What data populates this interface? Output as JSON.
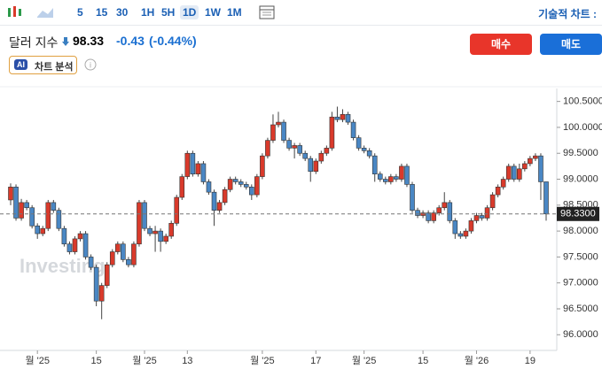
{
  "toolbar": {
    "intervals": [
      "5",
      "15",
      "30",
      "1H",
      "5H",
      "1D",
      "1W",
      "1M"
    ],
    "active": "1D",
    "right_label": "기술적 차트 :"
  },
  "header": {
    "name": "달러 지수",
    "price": "98.33",
    "change": "-0.43",
    "change_pct": "(-0.44%)",
    "buy": "매수",
    "sell": "매도",
    "ai_badge": "AI",
    "ai_label": "차트 분석",
    "watermark": "Investing"
  },
  "chart_data": {
    "type": "candlestick",
    "up_color": "#d93a2b",
    "down_color": "#4a87c4",
    "categories": [
      null,
      null,
      null,
      null,
      null,
      "월 '25",
      null,
      null,
      null,
      null,
      null,
      null,
      null,
      null,
      null,
      null,
      "15",
      null,
      null,
      null,
      null,
      null,
      null,
      null,
      null,
      "월 '25",
      null,
      null,
      null,
      null,
      null,
      null,
      null,
      "13",
      null,
      null,
      null,
      null,
      null,
      null,
      null,
      null,
      null,
      null,
      null,
      null,
      null,
      "월 '25",
      null,
      null,
      null,
      null,
      null,
      null,
      null,
      null,
      null,
      "17",
      null,
      null,
      null,
      null,
      null,
      null,
      null,
      null,
      "월 '25",
      null,
      null,
      null,
      null,
      null,
      null,
      null,
      null,
      null,
      null,
      "15",
      null,
      null,
      null,
      null,
      null,
      null,
      null,
      null,
      null,
      "월 '26",
      null,
      null,
      null,
      null,
      null,
      null,
      null,
      null,
      null,
      "19",
      null,
      null,
      null
    ],
    "open": [
      98.6,
      98.85,
      98.25,
      98.55,
      98.45,
      98.1,
      97.95,
      98.05,
      98.55,
      98.4,
      98.05,
      97.75,
      97.6,
      97.85,
      97.95,
      97.5,
      97.3,
      96.65,
      96.95,
      97.35,
      97.6,
      97.75,
      97.45,
      97.35,
      97.75,
      98.55,
      98.05,
      97.95,
      98.0,
      97.8,
      97.9,
      98.15,
      98.65,
      99.05,
      99.5,
      99.1,
      99.3,
      98.95,
      98.75,
      98.4,
      98.55,
      98.8,
      99.0,
      98.95,
      98.9,
      98.85,
      98.7,
      99.05,
      99.45,
      99.75,
      100.05,
      100.1,
      99.75,
      99.6,
      99.65,
      99.5,
      99.4,
      99.15,
      99.35,
      99.5,
      99.6,
      100.2,
      100.15,
      100.25,
      100.1,
      99.8,
      99.6,
      99.55,
      99.45,
      99.1,
      99.0,
      98.95,
      99.05,
      99.0,
      99.25,
      98.9,
      98.4,
      98.3,
      98.35,
      98.2,
      98.35,
      98.45,
      98.55,
      98.2,
      97.95,
      97.9,
      98.0,
      98.2,
      98.3,
      98.25,
      98.45,
      98.7,
      98.85,
      99.0,
      99.25,
      99.0,
      99.2,
      99.3,
      99.4,
      99.45,
      98.95
    ],
    "high": [
      98.92,
      98.9,
      98.62,
      98.6,
      98.5,
      98.15,
      98.1,
      98.6,
      98.6,
      98.45,
      98.1,
      97.8,
      97.9,
      98.0,
      98.0,
      97.55,
      97.35,
      97.0,
      97.4,
      97.65,
      97.8,
      97.8,
      97.5,
      97.8,
      98.6,
      98.6,
      98.1,
      98.1,
      98.05,
      97.95,
      98.2,
      98.7,
      99.1,
      99.55,
      99.55,
      99.35,
      99.35,
      99.0,
      98.8,
      98.6,
      98.85,
      99.05,
      99.05,
      99.0,
      98.95,
      98.9,
      99.1,
      99.5,
      99.8,
      100.25,
      100.3,
      100.15,
      99.8,
      99.7,
      99.7,
      99.55,
      99.45,
      99.4,
      99.55,
      99.65,
      100.3,
      100.4,
      100.35,
      100.3,
      100.15,
      99.85,
      99.65,
      99.6,
      99.5,
      99.15,
      99.05,
      99.1,
      99.1,
      99.3,
      99.3,
      98.95,
      98.45,
      98.4,
      98.4,
      98.4,
      98.5,
      98.75,
      98.6,
      98.25,
      98.0,
      98.05,
      98.25,
      98.35,
      98.35,
      98.5,
      98.75,
      98.9,
      99.05,
      99.3,
      99.3,
      99.3,
      99.35,
      99.45,
      99.5,
      99.5,
      98.95
    ],
    "low": [
      98.5,
      98.2,
      98.2,
      98.4,
      98.05,
      97.85,
      97.9,
      98.0,
      98.35,
      98.0,
      97.7,
      97.55,
      97.55,
      97.8,
      97.45,
      97.25,
      96.55,
      96.3,
      96.9,
      97.3,
      97.55,
      97.4,
      97.3,
      97.3,
      97.7,
      98.0,
      97.9,
      97.6,
      97.6,
      97.75,
      97.85,
      98.1,
      98.6,
      99.0,
      99.05,
      99.05,
      98.9,
      98.7,
      98.1,
      98.35,
      98.5,
      98.75,
      98.9,
      98.85,
      98.8,
      98.6,
      98.65,
      99.0,
      99.4,
      99.7,
      100.0,
      99.7,
      99.55,
      99.4,
      99.45,
      99.35,
      98.95,
      99.1,
      99.3,
      99.45,
      99.55,
      100.1,
      100.1,
      100.05,
      99.75,
      99.55,
      99.5,
      99.4,
      98.95,
      98.95,
      98.9,
      98.9,
      98.95,
      98.95,
      98.85,
      98.35,
      98.25,
      98.25,
      98.15,
      98.15,
      98.3,
      98.4,
      98.15,
      97.85,
      97.85,
      97.85,
      97.95,
      98.15,
      98.2,
      98.2,
      98.4,
      98.65,
      98.8,
      98.95,
      98.95,
      98.95,
      99.15,
      99.25,
      99.35,
      98.6,
      98.2
    ],
    "close": [
      98.85,
      98.25,
      98.55,
      98.45,
      98.1,
      97.95,
      98.05,
      98.55,
      98.4,
      98.05,
      97.75,
      97.6,
      97.85,
      97.95,
      97.5,
      97.3,
      96.65,
      96.95,
      97.35,
      97.6,
      97.75,
      97.45,
      97.35,
      97.75,
      98.55,
      98.05,
      97.95,
      98.0,
      97.8,
      97.9,
      98.15,
      98.65,
      99.05,
      99.5,
      99.1,
      99.3,
      98.95,
      98.75,
      98.4,
      98.55,
      98.8,
      99.0,
      98.95,
      98.9,
      98.85,
      98.7,
      99.05,
      99.45,
      99.75,
      100.05,
      100.1,
      99.75,
      99.6,
      99.65,
      99.5,
      99.4,
      99.15,
      99.35,
      99.5,
      99.6,
      100.2,
      100.15,
      100.25,
      100.1,
      99.8,
      99.6,
      99.55,
      99.45,
      99.1,
      99.0,
      98.95,
      99.05,
      99.0,
      99.25,
      98.9,
      98.4,
      98.3,
      98.35,
      98.2,
      98.35,
      98.45,
      98.55,
      98.2,
      97.95,
      97.9,
      98.0,
      98.2,
      98.3,
      98.25,
      98.45,
      98.7,
      98.85,
      99.0,
      99.25,
      99.0,
      99.2,
      99.3,
      99.4,
      99.45,
      98.95,
      98.33
    ],
    "ylim": [
      95.8,
      100.75
    ],
    "yticks": [
      {
        "value": 96,
        "label": "96.0000"
      },
      {
        "value": 96.5,
        "label": "96.5000"
      },
      {
        "value": 97,
        "label": "97.0000"
      },
      {
        "value": 97.5,
        "label": "97.5000"
      },
      {
        "value": 98,
        "label": "98.0000"
      },
      {
        "value": 98.5,
        "label": "98.5000"
      },
      {
        "value": 99,
        "label": "99.0000"
      },
      {
        "value": 99.5,
        "label": "99.5000"
      },
      {
        "value": 100,
        "label": "100.0000"
      },
      {
        "value": 100.5,
        "label": "100.5000"
      }
    ],
    "last_price": {
      "value": 98.33,
      "label": "98.3300"
    }
  }
}
